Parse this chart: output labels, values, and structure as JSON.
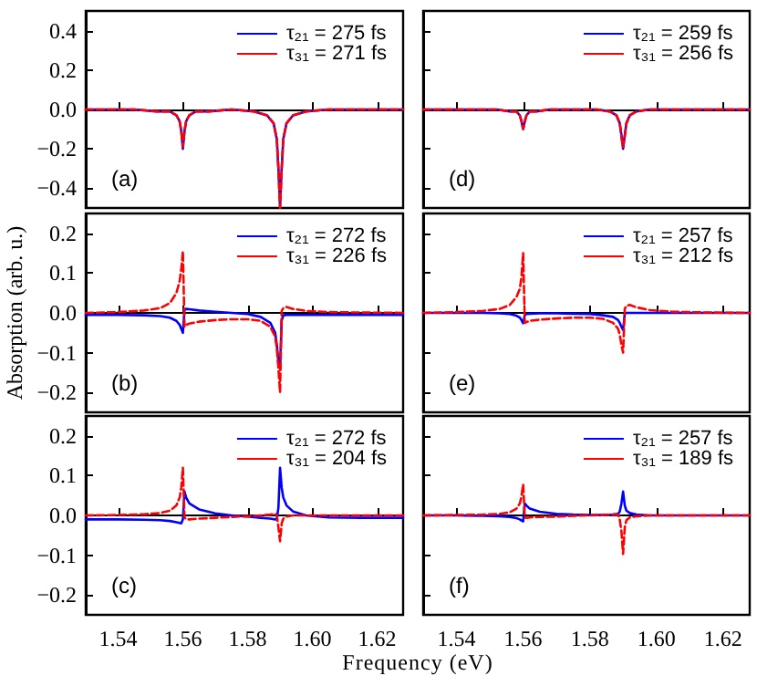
{
  "chart_data": [
    {
      "type": "line",
      "annotations": [
        "(a)"
      ],
      "legend": "top right",
      "tick_labels": "y",
      "xlim": [
        1.53,
        1.628
      ],
      "xticks": [
        1.54,
        1.56,
        1.58,
        1.6,
        1.62
      ],
      "ylim": [
        -0.5,
        0.5
      ],
      "yticks": [
        {
          "value": -0.4,
          "label": "−0.4"
        },
        {
          "value": -0.2,
          "label": "−0.2"
        },
        {
          "value": 0,
          "label": "0.0"
        },
        0.2,
        0.4
      ],
      "x": [
        1.53,
        1.545,
        1.552,
        1.556,
        1.558,
        1.559,
        1.5595,
        1.56,
        1.5605,
        1.561,
        1.562,
        1.564,
        1.568,
        1.575,
        1.582,
        1.586,
        1.588,
        1.589,
        1.5895,
        1.59,
        1.5905,
        1.591,
        1.592,
        1.594,
        1.598,
        1.605,
        1.615,
        1.628
      ],
      "series": [
        {
          "name": "τ₂₁ = 275 fs",
          "color": "#0000ff",
          "line_style": "solid",
          "values": [
            0,
            0,
            -0.01,
            -0.01,
            -0.03,
            -0.06,
            -0.11,
            -0.2,
            -0.11,
            -0.06,
            -0.03,
            -0.01,
            -0.01,
            0,
            -0.01,
            -0.03,
            -0.07,
            -0.15,
            -0.3,
            -0.49,
            -0.3,
            -0.15,
            -0.07,
            -0.03,
            -0.01,
            0,
            0,
            0
          ]
        },
        {
          "name": "τ₃₁ = 271 fs",
          "color": "#ff0000",
          "line_style": "dashed",
          "values": [
            0,
            0,
            -0.01,
            -0.01,
            -0.03,
            -0.06,
            -0.11,
            -0.19,
            -0.11,
            -0.06,
            -0.03,
            -0.01,
            -0.01,
            0,
            -0.01,
            -0.03,
            -0.07,
            -0.15,
            -0.31,
            -0.5,
            -0.31,
            -0.15,
            -0.07,
            -0.03,
            -0.01,
            0,
            0,
            0
          ]
        }
      ]
    },
    {
      "type": "line",
      "annotations": [
        "(b)"
      ],
      "ylabel": "Absorption (arb. u.)",
      "legend": "top right",
      "tick_labels": "y",
      "xlim": [
        1.53,
        1.628
      ],
      "xticks": [
        1.54,
        1.56,
        1.58,
        1.6,
        1.62
      ],
      "ylim": [
        -0.25,
        0.25
      ],
      "yticks": [
        {
          "value": -0.2,
          "label": "−0.2"
        },
        {
          "value": -0.1,
          "label": "−0.1"
        },
        {
          "value": 0,
          "label": "0.0"
        },
        0.1,
        0.2
      ],
      "x": [
        1.53,
        1.54,
        1.548,
        1.553,
        1.556,
        1.558,
        1.559,
        1.5595,
        1.56,
        1.5605,
        1.561,
        1.562,
        1.565,
        1.57,
        1.575,
        1.58,
        1.584,
        1.587,
        1.5885,
        1.589,
        1.5895,
        1.59,
        1.5905,
        1.591,
        1.592,
        1.594,
        1.598,
        1.605,
        1.615,
        1.628
      ],
      "series": [
        {
          "name": "τ₂₁ = 272 fs",
          "color": "#0000ff",
          "line_style": "solid",
          "values": [
            -0.005,
            -0.005,
            -0.006,
            -0.008,
            -0.012,
            -0.02,
            -0.03,
            -0.04,
            -0.05,
            0.008,
            0.01,
            0.009,
            0.006,
            0.003,
            0,
            -0.003,
            -0.01,
            -0.025,
            -0.05,
            -0.08,
            -0.12,
            -0.14,
            -0.02,
            -0.006,
            -0.005,
            -0.005,
            -0.005,
            -0.005,
            -0.005,
            -0.005
          ]
        },
        {
          "name": "τ₃₁ = 226 fs",
          "color": "#ff0000",
          "line_style": "dashed",
          "values": [
            0,
            0.002,
            0.006,
            0.012,
            0.025,
            0.05,
            0.08,
            0.11,
            0.155,
            -0.035,
            -0.03,
            -0.027,
            -0.022,
            -0.018,
            -0.016,
            -0.016,
            -0.02,
            -0.035,
            -0.06,
            -0.09,
            -0.14,
            -0.2,
            0.005,
            0.012,
            0.015,
            0.01,
            0.005,
            0.002,
            0.001,
            0
          ]
        }
      ]
    },
    {
      "type": "line",
      "annotations": [
        "(c)"
      ],
      "xlabel": "Frequency (eV)",
      "legend": "top right",
      "xlim": [
        1.53,
        1.628
      ],
      "xticks": [
        1.54,
        1.56,
        1.58,
        {
          "value": 1.6,
          "label": "1.60"
        },
        1.62
      ],
      "ylim": [
        -0.25,
        0.25
      ],
      "yticks": [
        {
          "value": -0.2,
          "label": "−0.2"
        },
        {
          "value": -0.1,
          "label": "−0.1"
        },
        {
          "value": 0,
          "label": "0.0"
        },
        0.1,
        0.2
      ],
      "x": [
        1.53,
        1.54,
        1.548,
        1.553,
        1.556,
        1.558,
        1.559,
        1.5595,
        1.56,
        1.5605,
        1.561,
        1.562,
        1.565,
        1.57,
        1.575,
        1.58,
        1.584,
        1.587,
        1.5885,
        1.589,
        1.5895,
        1.59,
        1.5905,
        1.591,
        1.592,
        1.594,
        1.598,
        1.605,
        1.615,
        1.628
      ],
      "series": [
        {
          "name": "τ₂₁ = 272 fs",
          "color": "#0000ff",
          "line_style": "solid",
          "values": [
            -0.01,
            -0.01,
            -0.011,
            -0.012,
            -0.014,
            -0.017,
            -0.019,
            -0.02,
            -0.01,
            0.06,
            0.045,
            0.03,
            0.015,
            0.005,
            0,
            -0.003,
            -0.006,
            -0.008,
            -0.01,
            -0.01,
            0.02,
            0.12,
            0.07,
            0.045,
            0.025,
            0.01,
            0,
            -0.005,
            -0.006,
            -0.006
          ]
        },
        {
          "name": "τ₃₁ = 204 fs",
          "color": "#ff0000",
          "line_style": "dashed",
          "values": [
            0,
            0.001,
            0.003,
            0.006,
            0.012,
            0.025,
            0.045,
            0.07,
            0.12,
            -0.005,
            -0.01,
            -0.01,
            -0.008,
            -0.006,
            -0.004,
            -0.002,
            0,
            0.002,
            0.004,
            0,
            -0.03,
            -0.065,
            -0.02,
            -0.008,
            -0.003,
            0,
            0,
            0,
            0,
            0
          ]
        }
      ]
    },
    {
      "type": "line",
      "annotations": [
        "(d)"
      ],
      "legend": "top right",
      "tick_labels": false,
      "xlim": [
        1.53,
        1.628
      ],
      "xticks": [
        1.54,
        1.56,
        1.58,
        1.6,
        1.62
      ],
      "ylim": [
        -0.5,
        0.5
      ],
      "yticks": [
        -0.4,
        -0.2,
        0,
        0.2,
        0.4
      ],
      "x": [
        1.53,
        1.545,
        1.552,
        1.556,
        1.558,
        1.559,
        1.5595,
        1.56,
        1.5605,
        1.561,
        1.562,
        1.564,
        1.568,
        1.575,
        1.582,
        1.586,
        1.588,
        1.589,
        1.5895,
        1.59,
        1.5905,
        1.591,
        1.592,
        1.594,
        1.598,
        1.605,
        1.615,
        1.628
      ],
      "series": [
        {
          "name": "τ₂₁ = 259 fs",
          "color": "#0000ff",
          "line_style": "solid",
          "values": [
            0,
            0,
            0,
            -0.01,
            -0.01,
            -0.03,
            -0.06,
            -0.1,
            -0.06,
            -0.03,
            -0.01,
            -0.01,
            0,
            0,
            0,
            -0.01,
            -0.03,
            -0.07,
            -0.13,
            -0.2,
            -0.13,
            -0.07,
            -0.03,
            -0.01,
            0,
            0,
            0,
            0
          ]
        },
        {
          "name": "τ₃₁ = 256 fs",
          "color": "#ff0000",
          "line_style": "dashed",
          "values": [
            0,
            0,
            0,
            -0.01,
            -0.01,
            -0.03,
            -0.06,
            -0.1,
            -0.06,
            -0.03,
            -0.01,
            -0.01,
            0,
            0,
            0,
            -0.01,
            -0.03,
            -0.07,
            -0.14,
            -0.19,
            -0.14,
            -0.07,
            -0.03,
            -0.01,
            0,
            0,
            0,
            0
          ]
        }
      ]
    },
    {
      "type": "line",
      "annotations": [
        "(e)"
      ],
      "legend": "top right",
      "tick_labels": false,
      "xlim": [
        1.53,
        1.628
      ],
      "xticks": [
        1.54,
        1.56,
        1.58,
        1.6,
        1.62
      ],
      "ylim": [
        -0.25,
        0.25
      ],
      "yticks": [
        -0.2,
        -0.1,
        0,
        0.1,
        0.2
      ],
      "x": [
        1.53,
        1.54,
        1.548,
        1.553,
        1.556,
        1.558,
        1.559,
        1.5595,
        1.56,
        1.5605,
        1.561,
        1.562,
        1.565,
        1.57,
        1.575,
        1.58,
        1.584,
        1.587,
        1.5885,
        1.589,
        1.5895,
        1.59,
        1.5905,
        1.591,
        1.592,
        1.594,
        1.598,
        1.605,
        1.615,
        1.628
      ],
      "series": [
        {
          "name": "τ₂₁ = 257 fs",
          "color": "#0000ff",
          "line_style": "solid",
          "values": [
            0,
            0,
            0,
            -0.001,
            -0.003,
            -0.007,
            -0.012,
            -0.018,
            -0.026,
            -0.005,
            -0.003,
            -0.002,
            -0.001,
            -0.001,
            -0.002,
            -0.003,
            -0.006,
            -0.01,
            -0.018,
            -0.025,
            -0.035,
            -0.043,
            -0.002,
            0,
            0,
            0,
            0,
            0,
            0,
            0
          ]
        },
        {
          "name": "τ₃₁ = 212 fs",
          "color": "#ff0000",
          "line_style": "dashed",
          "values": [
            0,
            0.002,
            0.005,
            0.01,
            0.02,
            0.04,
            0.06,
            0.09,
            0.15,
            -0.025,
            -0.023,
            -0.02,
            -0.017,
            -0.014,
            -0.012,
            -0.012,
            -0.015,
            -0.025,
            -0.04,
            -0.055,
            -0.08,
            -0.1,
            0.01,
            0.018,
            0.02,
            0.014,
            0.007,
            0.003,
            0.001,
            0
          ]
        }
      ]
    },
    {
      "type": "line",
      "annotations": [
        "(f)"
      ],
      "legend": "top right",
      "tick_labels": "x",
      "xlim": [
        1.53,
        1.628
      ],
      "xticks": [
        1.54,
        1.56,
        1.58,
        {
          "value": 1.6,
          "label": "1.60"
        },
        1.62
      ],
      "ylim": [
        -0.25,
        0.25
      ],
      "yticks": [
        -0.2,
        -0.1,
        0,
        0.1,
        0.2
      ],
      "x": [
        1.53,
        1.54,
        1.548,
        1.553,
        1.556,
        1.558,
        1.559,
        1.5595,
        1.56,
        1.5605,
        1.561,
        1.562,
        1.565,
        1.57,
        1.575,
        1.58,
        1.584,
        1.587,
        1.5885,
        1.589,
        1.5895,
        1.59,
        1.5905,
        1.591,
        1.592,
        1.594,
        1.598,
        1.605,
        1.615,
        1.628
      ],
      "series": [
        {
          "name": "τ₂₁ = 257 fs",
          "color": "#0000ff",
          "line_style": "solid",
          "values": [
            0,
            0,
            -0.001,
            -0.002,
            -0.004,
            -0.007,
            -0.01,
            -0.013,
            -0.015,
            0.03,
            0.025,
            0.017,
            0.009,
            0.004,
            0.002,
            0.001,
            0.001,
            0.002,
            0.004,
            0.01,
            0.03,
            0.06,
            0.025,
            0.012,
            0.006,
            0.002,
            0,
            0,
            0,
            0
          ]
        },
        {
          "name": "τ₃₁ = 189 fs",
          "color": "#ff0000",
          "line_style": "dashed",
          "values": [
            0,
            0.001,
            0.002,
            0.004,
            0.008,
            0.017,
            0.03,
            0.048,
            0.078,
            -0.005,
            -0.006,
            -0.005,
            -0.004,
            -0.003,
            -0.001,
            0,
            0.001,
            0.002,
            0.002,
            -0.01,
            -0.04,
            -0.097,
            -0.03,
            -0.012,
            -0.005,
            -0.002,
            0,
            0,
            0,
            0
          ]
        }
      ]
    }
  ]
}
